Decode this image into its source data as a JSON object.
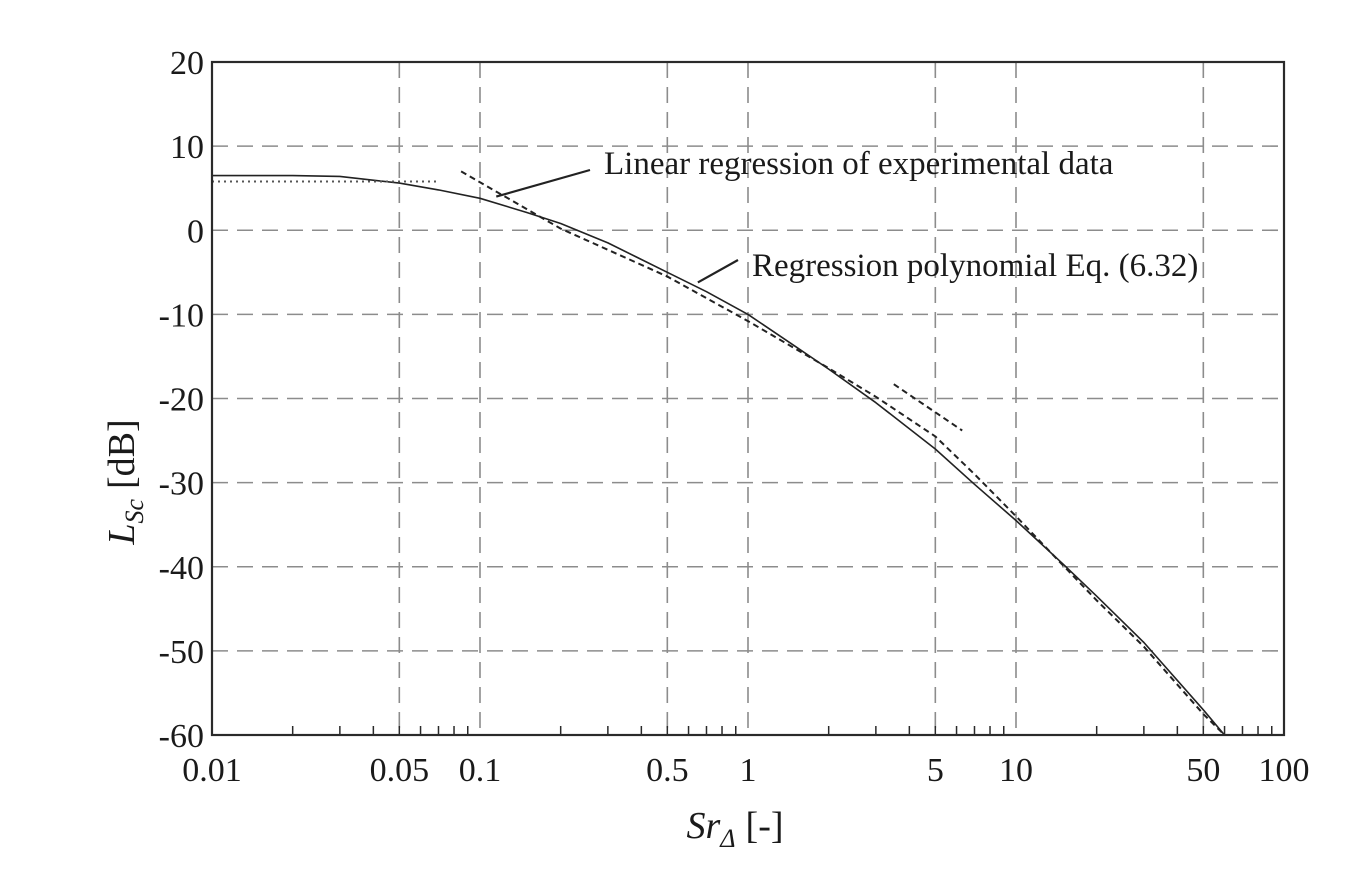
{
  "chart_data": {
    "type": "line",
    "title": "",
    "xscale": "log",
    "xlim": [
      0.01,
      100
    ],
    "ylim": [
      -60,
      20
    ],
    "grid": true,
    "xlabel": {
      "main": "Sr",
      "sub": "Δ",
      "unit": "[-]"
    },
    "ylabel": {
      "main": "L",
      "sub": "Sc",
      "unit": "[dB]"
    },
    "xticks": [
      {
        "value": 0.01,
        "label": "0.01"
      },
      {
        "value": 0.05,
        "label": "0.05"
      },
      {
        "value": 0.1,
        "label": "0.1"
      },
      {
        "value": 0.5,
        "label": "0.5"
      },
      {
        "value": 1,
        "label": "1"
      },
      {
        "value": 5,
        "label": "5"
      },
      {
        "value": 10,
        "label": "10"
      },
      {
        "value": 50,
        "label": "50"
      },
      {
        "value": 100,
        "label": "100"
      }
    ],
    "yticks": [
      {
        "value": 20,
        "label": "20"
      },
      {
        "value": 10,
        "label": "10"
      },
      {
        "value": 0,
        "label": "0"
      },
      {
        "value": -10,
        "label": "-10"
      },
      {
        "value": -20,
        "label": "-20"
      },
      {
        "value": -30,
        "label": "-30"
      },
      {
        "value": -40,
        "label": "-40"
      },
      {
        "value": -50,
        "label": "-50"
      },
      {
        "value": -60,
        "label": "-60"
      }
    ],
    "series": [
      {
        "style": "solid",
        "x": [
          0.01,
          0.02,
          0.03,
          0.05,
          0.07,
          0.1,
          0.15,
          0.2,
          0.3,
          0.5,
          0.7,
          1,
          1.5,
          2,
          3,
          5,
          7,
          10,
          15,
          20,
          30,
          50,
          60
        ],
        "y": [
          6.5,
          6.5,
          6.4,
          5.6,
          4.8,
          3.8,
          2.1,
          0.8,
          -1.5,
          -5.0,
          -7.3,
          -10.0,
          -13.8,
          -16.5,
          -20.5,
          -26.0,
          -30.2,
          -34.5,
          -39.7,
          -43.5,
          -49.0,
          -57.0,
          -60.0
        ]
      },
      {
        "style": "dashed",
        "x": [
          0.085,
          0.2,
          0.5,
          1,
          2,
          3,
          5,
          7,
          10,
          20,
          30,
          50,
          60
        ],
        "y": [
          7.0,
          0.2,
          -5.5,
          -10.8,
          -16.4,
          -19.8,
          -24.5,
          -29.0,
          -34.0,
          -44.0,
          -49.5,
          -57.5,
          -60.0
        ]
      },
      {
        "style": "dotted",
        "x": [
          0.01,
          0.02,
          0.03,
          0.05,
          0.07
        ],
        "y": [
          5.8,
          5.8,
          5.8,
          5.8,
          5.8
        ]
      },
      {
        "style": "dashed",
        "x": [
          3.5,
          6.3
        ],
        "y": [
          -18.3,
          -23.8
        ]
      }
    ],
    "annotations": [
      {
        "text": "Linear regression of experimental data",
        "target": {
          "x": 0.115,
          "y": 4.0
        }
      },
      {
        "text": "Regression polynomial Eq. (6.32)",
        "target": {
          "x": 0.65,
          "y": -6.2
        }
      }
    ]
  }
}
